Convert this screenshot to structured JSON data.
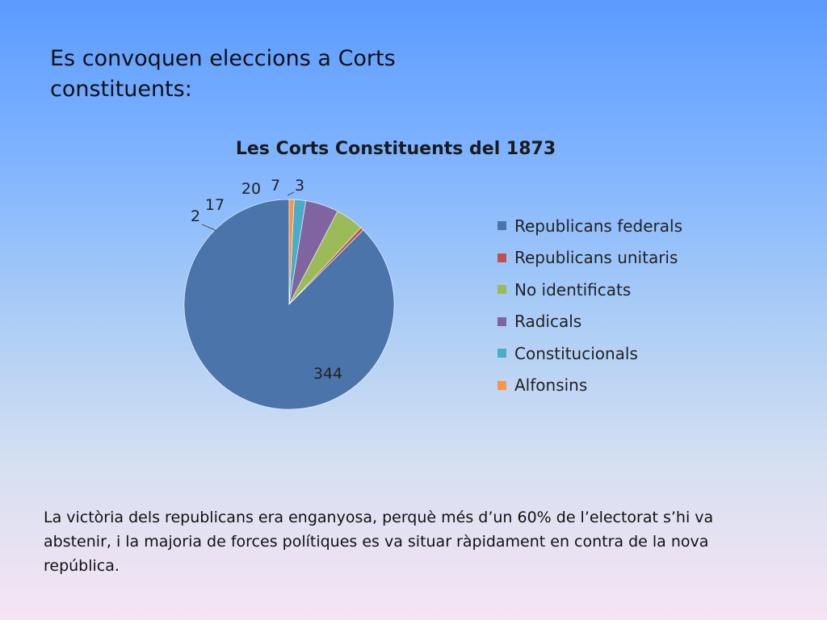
{
  "slide": {
    "title": "Es convoquen eleccions a Corts constituents:",
    "body": "La victòria dels republicans era enganyosa, perquè més d’un 60% de l’electorat s’hi va abstenir, i la majoria de forces polítiques es va situar ràpidament en contra de la nova república."
  },
  "chart_data": {
    "type": "pie",
    "title": "Les Corts Constituents del 1873",
    "legend_position": "right",
    "slices": [
      {
        "name": "Republicans federals",
        "value": 344,
        "color": "#4a74aa"
      },
      {
        "name": "Republicans unitaris",
        "value": 2,
        "color": "#c0504d"
      },
      {
        "name": "No identificats",
        "value": 17,
        "color": "#9bbb59"
      },
      {
        "name": "Radicals",
        "value": 20,
        "color": "#8064a2"
      },
      {
        "name": "Constitucionals",
        "value": 7,
        "color": "#4bacc6"
      },
      {
        "name": "Alfonsins",
        "value": 3,
        "color": "#f79646"
      }
    ]
  }
}
